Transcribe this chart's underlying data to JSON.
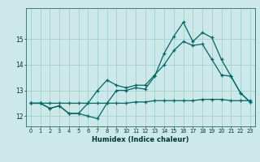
{
  "xlabel": "Humidex (Indice chaleur)",
  "background_color": "#cce8e8",
  "grid_color": "#99cccc",
  "line_color": "#006666",
  "xlim": [
    -0.5,
    23.5
  ],
  "ylim": [
    11.6,
    16.2
  ],
  "yticks": [
    12,
    13,
    14,
    15
  ],
  "xticks": [
    0,
    1,
    2,
    3,
    4,
    5,
    6,
    7,
    8,
    9,
    10,
    11,
    12,
    13,
    14,
    15,
    16,
    17,
    18,
    19,
    20,
    21,
    22,
    23
  ],
  "line1_x": [
    0,
    1,
    2,
    3,
    4,
    5,
    6,
    7,
    8,
    9,
    10,
    11,
    12,
    13,
    14,
    15,
    16,
    17,
    18,
    19,
    20,
    21,
    22,
    23
  ],
  "line1_y": [
    12.5,
    12.5,
    12.5,
    12.5,
    12.5,
    12.5,
    12.5,
    12.5,
    12.5,
    12.5,
    12.5,
    12.55,
    12.55,
    12.6,
    12.6,
    12.6,
    12.6,
    12.6,
    12.65,
    12.65,
    12.65,
    12.6,
    12.6,
    12.6
  ],
  "line2_x": [
    0,
    1,
    2,
    3,
    4,
    5,
    6,
    7,
    8,
    9,
    10,
    11,
    12,
    13,
    14,
    15,
    16,
    17,
    18,
    19,
    20,
    21,
    22,
    23
  ],
  "line2_y": [
    12.5,
    12.5,
    12.3,
    12.4,
    12.1,
    12.1,
    12.0,
    11.9,
    12.5,
    13.0,
    13.0,
    13.1,
    13.05,
    13.55,
    14.45,
    15.1,
    15.65,
    14.9,
    15.25,
    15.05,
    14.2,
    13.55,
    12.9,
    12.55
  ],
  "line3_x": [
    0,
    1,
    2,
    3,
    4,
    5,
    6,
    7,
    8,
    9,
    10,
    11,
    12,
    13,
    14,
    15,
    16,
    17,
    18,
    19,
    20,
    21,
    22,
    23
  ],
  "line3_y": [
    12.5,
    12.5,
    12.3,
    12.4,
    12.1,
    12.1,
    12.5,
    13.0,
    13.4,
    13.2,
    13.1,
    13.2,
    13.2,
    13.6,
    14.0,
    14.55,
    14.9,
    14.75,
    14.8,
    14.2,
    13.6,
    13.55,
    12.9,
    12.55
  ]
}
